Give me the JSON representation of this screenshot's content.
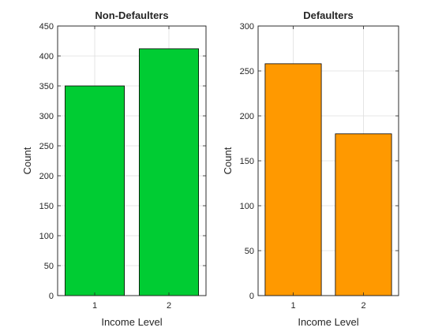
{
  "chart_data": [
    {
      "type": "bar",
      "title": "Non-Defaulters",
      "xlabel": "Income Level",
      "ylabel": "Count",
      "categories": [
        "1",
        "2"
      ],
      "values": [
        350,
        412
      ],
      "ylim": [
        0,
        450
      ],
      "yticks": [
        0,
        50,
        100,
        150,
        200,
        250,
        300,
        350,
        400,
        450
      ],
      "grid": true,
      "color": "#00cc33"
    },
    {
      "type": "bar",
      "title": "Defaulters",
      "xlabel": "Income Level",
      "ylabel": "Count",
      "categories": [
        "1",
        "2"
      ],
      "values": [
        258,
        180
      ],
      "ylim": [
        0,
        300
      ],
      "yticks": [
        0,
        50,
        100,
        150,
        200,
        250,
        300
      ],
      "grid": true,
      "color": "#ff9900"
    }
  ]
}
